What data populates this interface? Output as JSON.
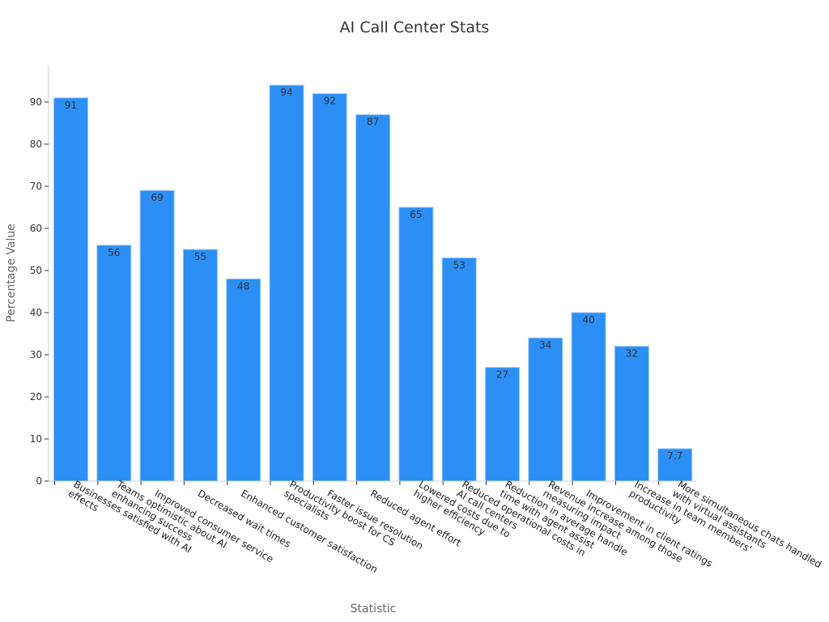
{
  "chart_data": {
    "type": "bar",
    "title": "AI Call Center Stats",
    "xlabel": "Statistic",
    "ylabel": "Percentage Value",
    "ylim": [
      0,
      100
    ],
    "yticks": [
      0,
      10,
      20,
      30,
      40,
      50,
      60,
      70,
      80,
      90
    ],
    "grid": false,
    "bar_color": "#2b8ff5",
    "categories": [
      [
        "Businesses satisfied with AI",
        "effects"
      ],
      [
        "Teams optimistic about AI",
        "enhancing success"
      ],
      [
        "Improved consumer service"
      ],
      [
        "Decreased wait times"
      ],
      [
        "Enhanced customer satisfaction"
      ],
      [
        "Productivity boost for CS",
        "specialists"
      ],
      [
        "Faster issue resolution"
      ],
      [
        "Reduced agent effort"
      ],
      [
        "Lowered costs due to",
        "higher efficiency"
      ],
      [
        "Reduced operational costs in",
        "AI call centers"
      ],
      [
        "Reduction in average handle",
        "time with agent assist"
      ],
      [
        "Revenue increase among those",
        "measuring impact"
      ],
      [
        "Improvement in client ratings"
      ],
      [
        "Increase in team members'",
        "productivity"
      ],
      [
        "More simultaneous chats handled",
        "with virtual assistants"
      ]
    ],
    "values": [
      91,
      56,
      69,
      55,
      48,
      94,
      92,
      87,
      65,
      53,
      27,
      34,
      40,
      32,
      7.7
    ]
  }
}
